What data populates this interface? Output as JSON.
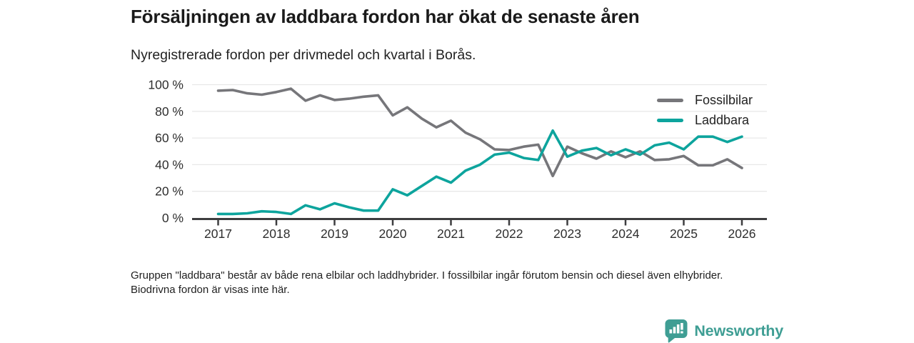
{
  "header": {
    "title": "Försäljningen av laddbara fordon har ökat de senaste åren",
    "subtitle": "Nyregistrerade fordon per drivmedel och kvartal i Borås."
  },
  "chart_data": {
    "type": "line",
    "x_unit": "quarter",
    "categories": [
      "2017 Q1",
      "2017 Q2",
      "2017 Q3",
      "2017 Q4",
      "2018 Q1",
      "2018 Q2",
      "2018 Q3",
      "2018 Q4",
      "2019 Q1",
      "2019 Q2",
      "2019 Q3",
      "2019 Q4",
      "2020 Q1",
      "2020 Q2",
      "2020 Q3",
      "2020 Q4",
      "2021 Q1",
      "2021 Q2",
      "2021 Q3",
      "2021 Q4",
      "2022 Q1",
      "2022 Q2",
      "2022 Q3",
      "2022 Q4",
      "2023 Q1",
      "2023 Q2",
      "2023 Q3",
      "2023 Q4",
      "2024 Q1",
      "2024 Q2",
      "2024 Q3",
      "2024 Q4",
      "2025 Q1",
      "2025 Q2",
      "2025 Q3",
      "2025 Q4",
      "2026 Q1"
    ],
    "series": [
      {
        "name": "Fossilbilar",
        "color": "#76767a",
        "values": [
          95.5,
          96,
          93.5,
          92.5,
          94.5,
          97,
          88,
          92,
          88.5,
          89.5,
          91,
          92,
          77,
          83,
          74.5,
          68,
          73,
          64,
          59,
          51.5,
          51,
          53.5,
          55,
          31.5,
          53.5,
          48.5,
          44.5,
          50,
          45.5,
          50,
          43.5,
          44,
          46.5,
          39.5,
          39.5,
          44,
          37.5
        ]
      },
      {
        "name": "Laddbara",
        "color": "#0da49d",
        "values": [
          3,
          3,
          3.5,
          5,
          4.5,
          3,
          9.5,
          6.5,
          11,
          8,
          5.5,
          5.5,
          21.5,
          17,
          24,
          31,
          26.5,
          35.5,
          40,
          47.5,
          49,
          45,
          43.5,
          65.5,
          46,
          50.5,
          52.5,
          47,
          51.5,
          47.5,
          54.5,
          56.5,
          51.5,
          61,
          61,
          57,
          61
        ]
      }
    ],
    "ylim": [
      0,
      100
    ],
    "unit": "%",
    "yticks": [
      {
        "value": 0,
        "label": "0 %"
      },
      {
        "value": 20,
        "label": "20 %"
      },
      {
        "value": 40,
        "label": "40 %"
      },
      {
        "value": 60,
        "label": "60 %"
      },
      {
        "value": 80,
        "label": "80 %"
      },
      {
        "value": 100,
        "label": "100 %"
      }
    ],
    "xticks": [
      {
        "index": 0,
        "label": "2017"
      },
      {
        "index": 4,
        "label": "2018"
      },
      {
        "index": 8,
        "label": "2019"
      },
      {
        "index": 12,
        "label": "2020"
      },
      {
        "index": 16,
        "label": "2021"
      },
      {
        "index": 20,
        "label": "2022"
      },
      {
        "index": 24,
        "label": "2023"
      },
      {
        "index": 28,
        "label": "2024"
      },
      {
        "index": 32,
        "label": "2025"
      },
      {
        "index": 36,
        "label": "2026"
      }
    ],
    "grid": true,
    "legend_position": "top-right"
  },
  "footnote": {
    "text": "Gruppen \"laddbara\" består av både rena elbilar och laddhybrider. I fossilbilar ingår förutom bensin och diesel även elhybrider. Biodrivna fordon är visas inte här."
  },
  "branding": {
    "name": "Newsworthy",
    "color": "#3f9e94",
    "icon": "bar-chart-pin-icon"
  },
  "style": {
    "axis_color": "#3d3d3f",
    "grid_color": "#e8e8e8",
    "tick_label_color": "#2e2e2e"
  }
}
